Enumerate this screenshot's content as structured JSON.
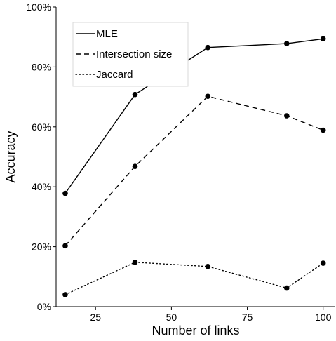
{
  "chart_data": {
    "type": "line",
    "xlabel": "Number of links",
    "ylabel": "Accuracy",
    "xlim": [
      12,
      104
    ],
    "ylim": [
      0,
      100
    ],
    "x_ticks": [
      25,
      50,
      75,
      100
    ],
    "x_tick_labels": [
      "25",
      "50",
      "75",
      "100"
    ],
    "y_ticks": [
      0,
      20,
      40,
      60,
      80,
      100
    ],
    "y_tick_labels": [
      "0%",
      "20%",
      "40%",
      "60%",
      "80%",
      "100%"
    ],
    "grid": false,
    "legend_position": "top-left",
    "x": [
      15,
      38,
      62,
      88,
      100
    ],
    "series": [
      {
        "name": "MLE",
        "line_style": "solid",
        "values": [
          37.8,
          70.8,
          86.5,
          87.8,
          89.4
        ]
      },
      {
        "name": "Intersection size",
        "line_style": "dashed",
        "values": [
          20.3,
          46.8,
          70.2,
          63.7,
          58.9
        ]
      },
      {
        "name": "Jaccard",
        "line_style": "dotted",
        "values": [
          4.0,
          14.8,
          13.4,
          6.2,
          14.5
        ]
      }
    ]
  }
}
